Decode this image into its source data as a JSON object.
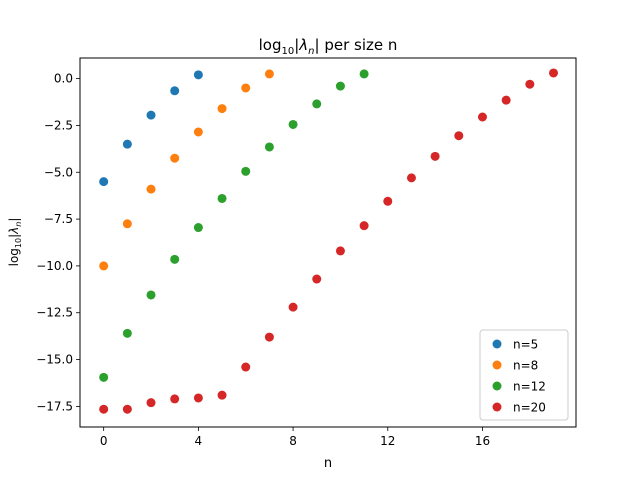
{
  "chart_data": {
    "type": "scatter",
    "title": {
      "prefix": "log",
      "base": "10",
      "body": "|λ",
      "sub": "n",
      "suffix": "| per size n"
    },
    "xlabel": "n",
    "ylabel": {
      "prefix": "log",
      "base": "10",
      "body": "|λ",
      "sub": "n",
      "suffix": "|"
    },
    "xlim": [
      -1,
      19.95
    ],
    "ylim": [
      -18.6,
      1.1
    ],
    "xticks": [
      0,
      4,
      8,
      12,
      16
    ],
    "yticks": [
      0.0,
      -2.5,
      -5.0,
      -7.5,
      -10.0,
      -12.5,
      -15.0,
      -17.5
    ],
    "ytick_labels": [
      "0.0",
      "−2.5",
      "−5.0",
      "−7.5",
      "−10.0",
      "−12.5",
      "−15.0",
      "−17.5"
    ],
    "legend": "bottom-right",
    "grid": false,
    "series": [
      {
        "name": "n=5",
        "color": "#1f77b4",
        "x": [
          0,
          1,
          2,
          3,
          4
        ],
        "y": [
          -5.5,
          -3.5,
          -1.95,
          -0.65,
          0.2
        ]
      },
      {
        "name": "n=8",
        "color": "#ff7f0e",
        "x": [
          0,
          1,
          2,
          3,
          4,
          5,
          6,
          7
        ],
        "y": [
          -10.0,
          -7.75,
          -5.9,
          -4.25,
          -2.85,
          -1.6,
          -0.5,
          0.25
        ]
      },
      {
        "name": "n=12",
        "color": "#2ca02c",
        "x": [
          0,
          1,
          2,
          3,
          4,
          5,
          6,
          7,
          8,
          9,
          10,
          11
        ],
        "y": [
          -15.95,
          -13.6,
          -11.55,
          -9.65,
          -7.95,
          -6.4,
          -4.95,
          -3.65,
          -2.45,
          -1.35,
          -0.4,
          0.25
        ]
      },
      {
        "name": "n=20",
        "color": "#d62728",
        "x": [
          0,
          1,
          2,
          3,
          4,
          5,
          6,
          7,
          8,
          9,
          10,
          11,
          12,
          13,
          14,
          15,
          16,
          17,
          18,
          19
        ],
        "y": [
          -17.65,
          -17.65,
          -17.3,
          -17.1,
          -17.05,
          -16.9,
          -15.4,
          -13.8,
          -12.2,
          -10.7,
          -9.2,
          -7.85,
          -6.55,
          -5.3,
          -4.15,
          -3.05,
          -2.05,
          -1.15,
          -0.3,
          0.3
        ]
      }
    ]
  }
}
